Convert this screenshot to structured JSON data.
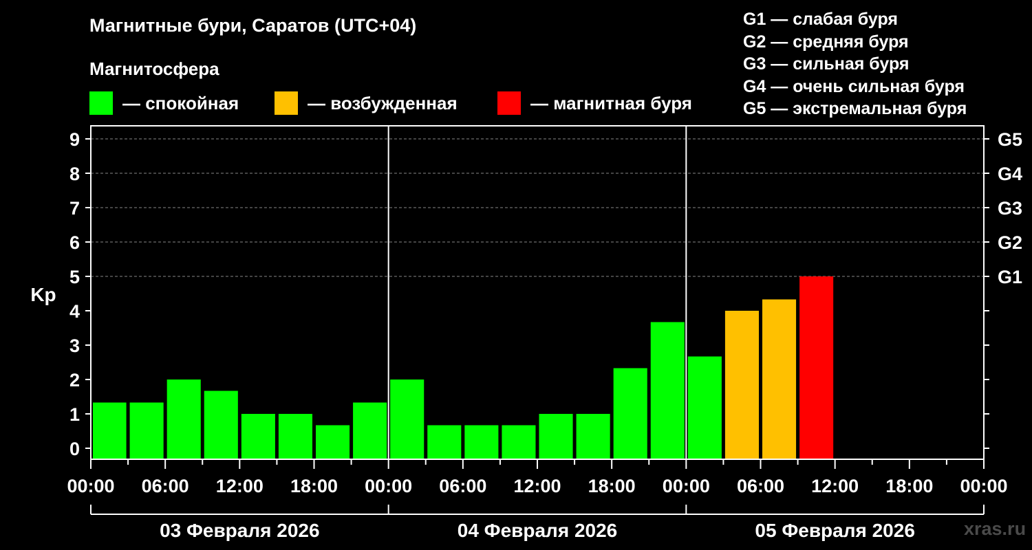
{
  "title": "Магнитные бури, Саратов (UTC+04)",
  "subtitle": "Магнитосфера",
  "legend": [
    {
      "label": "— спокойная",
      "color": "#00ff00"
    },
    {
      "label": "— возбужденная",
      "color": "#ffc000"
    },
    {
      "label": "— магнитная буря",
      "color": "#ff0000"
    }
  ],
  "g_legend": [
    "G1 — слабая буря",
    "G2 — средняя буря",
    "G3 — сильная буря",
    "G4 — очень сильная буря",
    "G5 — экстремальная буря"
  ],
  "watermark": "xras.ru",
  "chart_data": {
    "type": "bar",
    "ylabel": "Kp",
    "ylim": [
      0,
      9
    ],
    "yticks": [
      0,
      1,
      2,
      3,
      4,
      5,
      6,
      7,
      8,
      9
    ],
    "right_axis_labels": [
      {
        "y": 5,
        "label": "G1"
      },
      {
        "y": 6,
        "label": "G2"
      },
      {
        "y": 7,
        "label": "G3"
      },
      {
        "y": 8,
        "label": "G4"
      },
      {
        "y": 9,
        "label": "G5"
      }
    ],
    "x_tick_labels": [
      "00:00",
      "06:00",
      "12:00",
      "18:00",
      "00:00",
      "06:00",
      "12:00",
      "18:00",
      "00:00",
      "06:00",
      "12:00",
      "18:00",
      "00:00"
    ],
    "days": [
      "03 Февраля 2026",
      "04 Февраля 2026",
      "05 Февраля 2026"
    ],
    "grid": "dashed horizontal at 5–9",
    "colors": {
      "quiet": "#00ff00",
      "active": "#ffc000",
      "storm": "#ff0000"
    },
    "bars": [
      {
        "start_hour": 0,
        "value": 1.33,
        "level": "quiet"
      },
      {
        "start_hour": 3,
        "value": 1.33,
        "level": "quiet"
      },
      {
        "start_hour": 6,
        "value": 2.0,
        "level": "quiet"
      },
      {
        "start_hour": 9,
        "value": 1.67,
        "level": "quiet"
      },
      {
        "start_hour": 12,
        "value": 1.0,
        "level": "quiet"
      },
      {
        "start_hour": 15,
        "value": 1.0,
        "level": "quiet"
      },
      {
        "start_hour": 18,
        "value": 0.67,
        "level": "quiet"
      },
      {
        "start_hour": 21,
        "value": 1.33,
        "level": "quiet"
      },
      {
        "start_hour": 24,
        "value": 2.0,
        "level": "quiet"
      },
      {
        "start_hour": 27,
        "value": 0.67,
        "level": "quiet"
      },
      {
        "start_hour": 30,
        "value": 0.67,
        "level": "quiet"
      },
      {
        "start_hour": 33,
        "value": 0.67,
        "level": "quiet"
      },
      {
        "start_hour": 36,
        "value": 1.0,
        "level": "quiet"
      },
      {
        "start_hour": 39,
        "value": 1.0,
        "level": "quiet"
      },
      {
        "start_hour": 42,
        "value": 2.33,
        "level": "quiet"
      },
      {
        "start_hour": 45,
        "value": 3.67,
        "level": "quiet"
      },
      {
        "start_hour": 48,
        "value": 2.67,
        "level": "quiet"
      },
      {
        "start_hour": 51,
        "value": 4.0,
        "level": "active"
      },
      {
        "start_hour": 54,
        "value": 4.33,
        "level": "active"
      },
      {
        "start_hour": 57,
        "value": 5.0,
        "level": "storm"
      }
    ]
  }
}
